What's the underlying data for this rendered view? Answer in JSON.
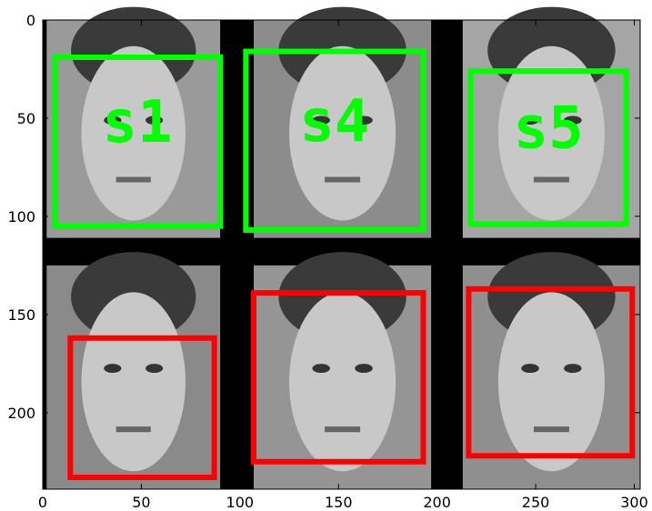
{
  "image_axes": {
    "x_ticks": [
      0,
      50,
      100,
      150,
      200,
      250,
      300
    ],
    "y_ticks": [
      0,
      50,
      100,
      150,
      200
    ],
    "x_range": [
      0,
      303
    ],
    "y_range": [
      0,
      239
    ],
    "background_color": "#000000"
  },
  "face_tiles": [
    {
      "x": [
        2,
        90
      ],
      "y": [
        0,
        111
      ],
      "row": "top",
      "shade": "#9a9a9a"
    },
    {
      "x": [
        107,
        197
      ],
      "y": [
        0,
        111
      ],
      "row": "top",
      "shade": "#8c8c8c"
    },
    {
      "x": [
        213,
        303
      ],
      "y": [
        0,
        111
      ],
      "row": "top",
      "shade": "#a5a5a5"
    },
    {
      "x": [
        2,
        90
      ],
      "y": [
        125,
        239
      ],
      "row": "bottom",
      "shade": "#8a8a8a"
    },
    {
      "x": [
        107,
        197
      ],
      "y": [
        125,
        239
      ],
      "row": "bottom",
      "shade": "#959595"
    },
    {
      "x": [
        213,
        303
      ],
      "y": [
        125,
        239
      ],
      "row": "bottom",
      "shade": "#8f8f8f"
    }
  ],
  "detections": [
    {
      "label": "s1",
      "color": "#00ff00",
      "x": [
        6,
        90
      ],
      "y": [
        19,
        105
      ]
    },
    {
      "label": "s4",
      "color": "#00ff00",
      "x": [
        103,
        193
      ],
      "y": [
        16,
        107
      ]
    },
    {
      "label": "s5",
      "color": "#00ff00",
      "x": [
        217,
        296
      ],
      "y": [
        26,
        104
      ]
    },
    {
      "label": "",
      "color": "#ff0000",
      "x": [
        14,
        87
      ],
      "y": [
        162,
        233
      ]
    },
    {
      "label": "",
      "color": "#ff0000",
      "x": [
        107,
        193
      ],
      "y": [
        139,
        225
      ]
    },
    {
      "label": "",
      "color": "#ff0000",
      "x": [
        216,
        299
      ],
      "y": [
        137,
        222
      ]
    }
  ]
}
